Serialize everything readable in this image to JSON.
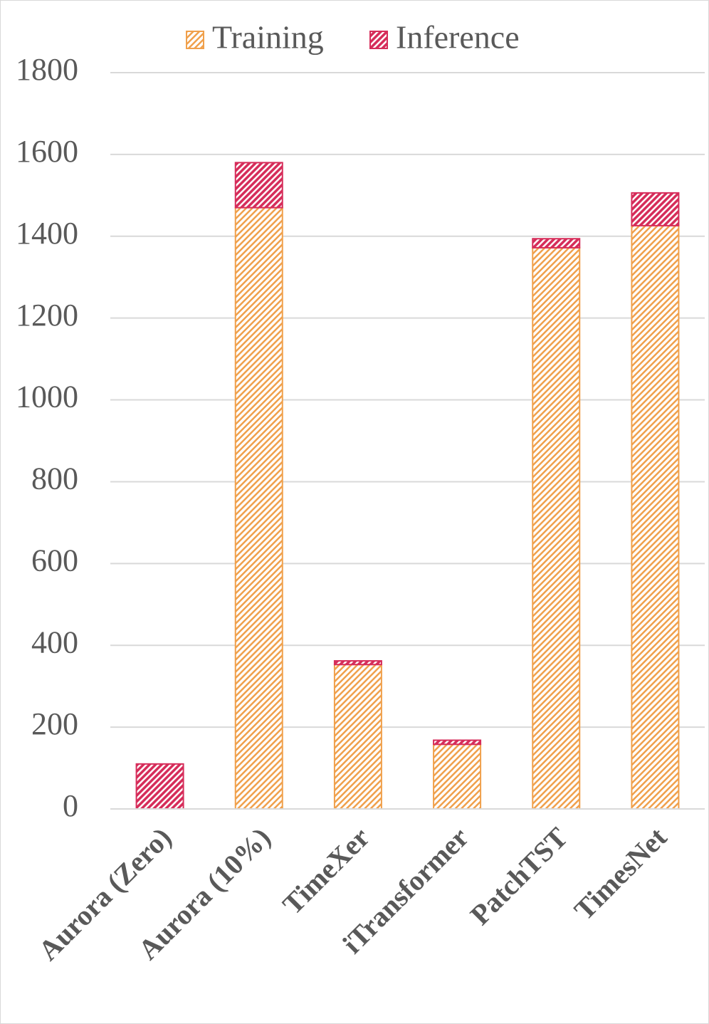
{
  "chart_data": {
    "type": "stacked_bar",
    "categories": [
      "Aurora (Zero)",
      "Aurora (10%)",
      "TimeXer",
      "iTransformer",
      "PatchTST",
      "TimesNet"
    ],
    "series": [
      {
        "name": "Training",
        "color": "#f0a04b",
        "values": [
          0,
          1470,
          353,
          158,
          1372,
          1426
        ]
      },
      {
        "name": "Inference",
        "color": "#d62d5a",
        "values": [
          110,
          110,
          9,
          10,
          22,
          80
        ]
      }
    ],
    "ylim": [
      0,
      1800
    ],
    "yticks": [
      0,
      200,
      400,
      600,
      800,
      1000,
      1200,
      1400,
      1600,
      1800
    ],
    "grid": true,
    "legend": "top"
  }
}
